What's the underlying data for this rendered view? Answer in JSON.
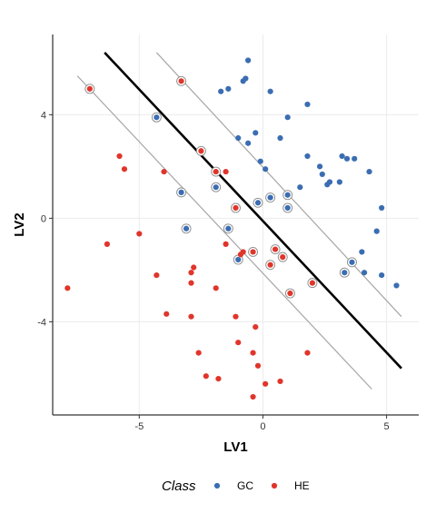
{
  "chart_data": {
    "type": "scatter",
    "xlabel": "LV1",
    "ylabel": "LV2",
    "xlim": [
      -8.5,
      6.3
    ],
    "ylim": [
      -7.6,
      7.1
    ],
    "x_ticks": [
      -5,
      0,
      5
    ],
    "y_ticks": [
      -4,
      0,
      4
    ],
    "grid": true,
    "legend": {
      "title": "Class",
      "position": "bottom",
      "entries": [
        {
          "name": "GC",
          "color": "#3b6db2"
        },
        {
          "name": "HE",
          "color": "#e0352b"
        }
      ]
    },
    "lines": [
      {
        "role": "decision boundary",
        "color": "#000000",
        "points": [
          [
            -6.4,
            6.4
          ],
          [
            5.6,
            -5.8
          ]
        ]
      },
      {
        "role": "upper margin",
        "color": "#a6a6a6",
        "points": [
          [
            -4.3,
            6.4
          ],
          [
            5.6,
            -3.8
          ]
        ]
      },
      {
        "role": "lower margin",
        "color": "#a6a6a6",
        "points": [
          [
            -7.5,
            5.5
          ],
          [
            4.4,
            -6.6
          ]
        ]
      }
    ],
    "series": [
      {
        "name": "GC",
        "color": "#3b6db2",
        "points": [
          [
            -0.6,
            6.1
          ],
          [
            -1.7,
            4.9
          ],
          [
            -1.4,
            5.0
          ],
          [
            -0.8,
            5.3
          ],
          [
            -0.7,
            5.4
          ],
          [
            0.3,
            4.9
          ],
          [
            1.8,
            4.4
          ],
          [
            1.0,
            3.9
          ],
          [
            -0.3,
            3.3
          ],
          [
            -1.0,
            3.1
          ],
          [
            -0.6,
            2.9
          ],
          [
            0.7,
            3.1
          ],
          [
            -0.1,
            2.2
          ],
          [
            0.1,
            1.9
          ],
          [
            1.8,
            2.4
          ],
          [
            2.3,
            2.0
          ],
          [
            3.2,
            2.4
          ],
          [
            3.4,
            2.3
          ],
          [
            3.7,
            2.3
          ],
          [
            2.4,
            1.7
          ],
          [
            2.6,
            1.3
          ],
          [
            2.7,
            1.4
          ],
          [
            3.1,
            1.4
          ],
          [
            4.3,
            1.8
          ],
          [
            1.5,
            1.2
          ],
          [
            4.8,
            0.4
          ],
          [
            4.6,
            -0.5
          ],
          [
            4.0,
            -1.3
          ],
          [
            4.1,
            -2.1
          ],
          [
            4.8,
            -2.2
          ],
          [
            5.4,
            -2.6
          ]
        ],
        "ringed": [
          [
            -4.3,
            3.9
          ],
          [
            -3.3,
            1.0
          ],
          [
            -1.9,
            1.2
          ],
          [
            -3.1,
            -0.4
          ],
          [
            -1.4,
            -0.4
          ],
          [
            -1.0,
            -1.6
          ],
          [
            -0.2,
            0.6
          ],
          [
            0.3,
            0.8
          ],
          [
            1.0,
            0.9
          ],
          [
            1.0,
            0.4
          ],
          [
            3.6,
            -1.7
          ],
          [
            3.3,
            -2.1
          ]
        ]
      },
      {
        "name": "HE",
        "color": "#e0352b",
        "points": [
          [
            -5.8,
            2.4
          ],
          [
            -5.6,
            1.9
          ],
          [
            -4.0,
            1.8
          ],
          [
            -1.5,
            1.8
          ],
          [
            -6.3,
            -1.0
          ],
          [
            -5.0,
            -0.6
          ],
          [
            -1.5,
            -1.0
          ],
          [
            -0.8,
            -1.3
          ],
          [
            -0.9,
            -1.4
          ],
          [
            -2.8,
            -1.9
          ],
          [
            -2.9,
            -2.1
          ],
          [
            -4.3,
            -2.2
          ],
          [
            -2.9,
            -2.5
          ],
          [
            -7.9,
            -2.7
          ],
          [
            -1.9,
            -2.7
          ],
          [
            -3.9,
            -3.7
          ],
          [
            -2.9,
            -3.8
          ],
          [
            -1.1,
            -3.8
          ],
          [
            -0.3,
            -4.2
          ],
          [
            -1.0,
            -4.8
          ],
          [
            -2.6,
            -5.2
          ],
          [
            -0.4,
            -5.2
          ],
          [
            1.8,
            -5.2
          ],
          [
            -0.2,
            -5.7
          ],
          [
            -2.3,
            -6.1
          ],
          [
            -1.8,
            -6.2
          ],
          [
            0.7,
            -6.3
          ],
          [
            0.1,
            -6.4
          ],
          [
            -0.4,
            -6.9
          ]
        ],
        "ringed": [
          [
            -7.0,
            5.0
          ],
          [
            -3.3,
            5.3
          ],
          [
            -2.5,
            2.6
          ],
          [
            -1.9,
            1.8
          ],
          [
            -1.1,
            0.4
          ],
          [
            -0.4,
            -1.3
          ],
          [
            0.5,
            -1.2
          ],
          [
            0.8,
            -1.5
          ],
          [
            0.3,
            -1.8
          ],
          [
            1.1,
            -2.9
          ],
          [
            2.0,
            -2.5
          ]
        ]
      }
    ]
  }
}
